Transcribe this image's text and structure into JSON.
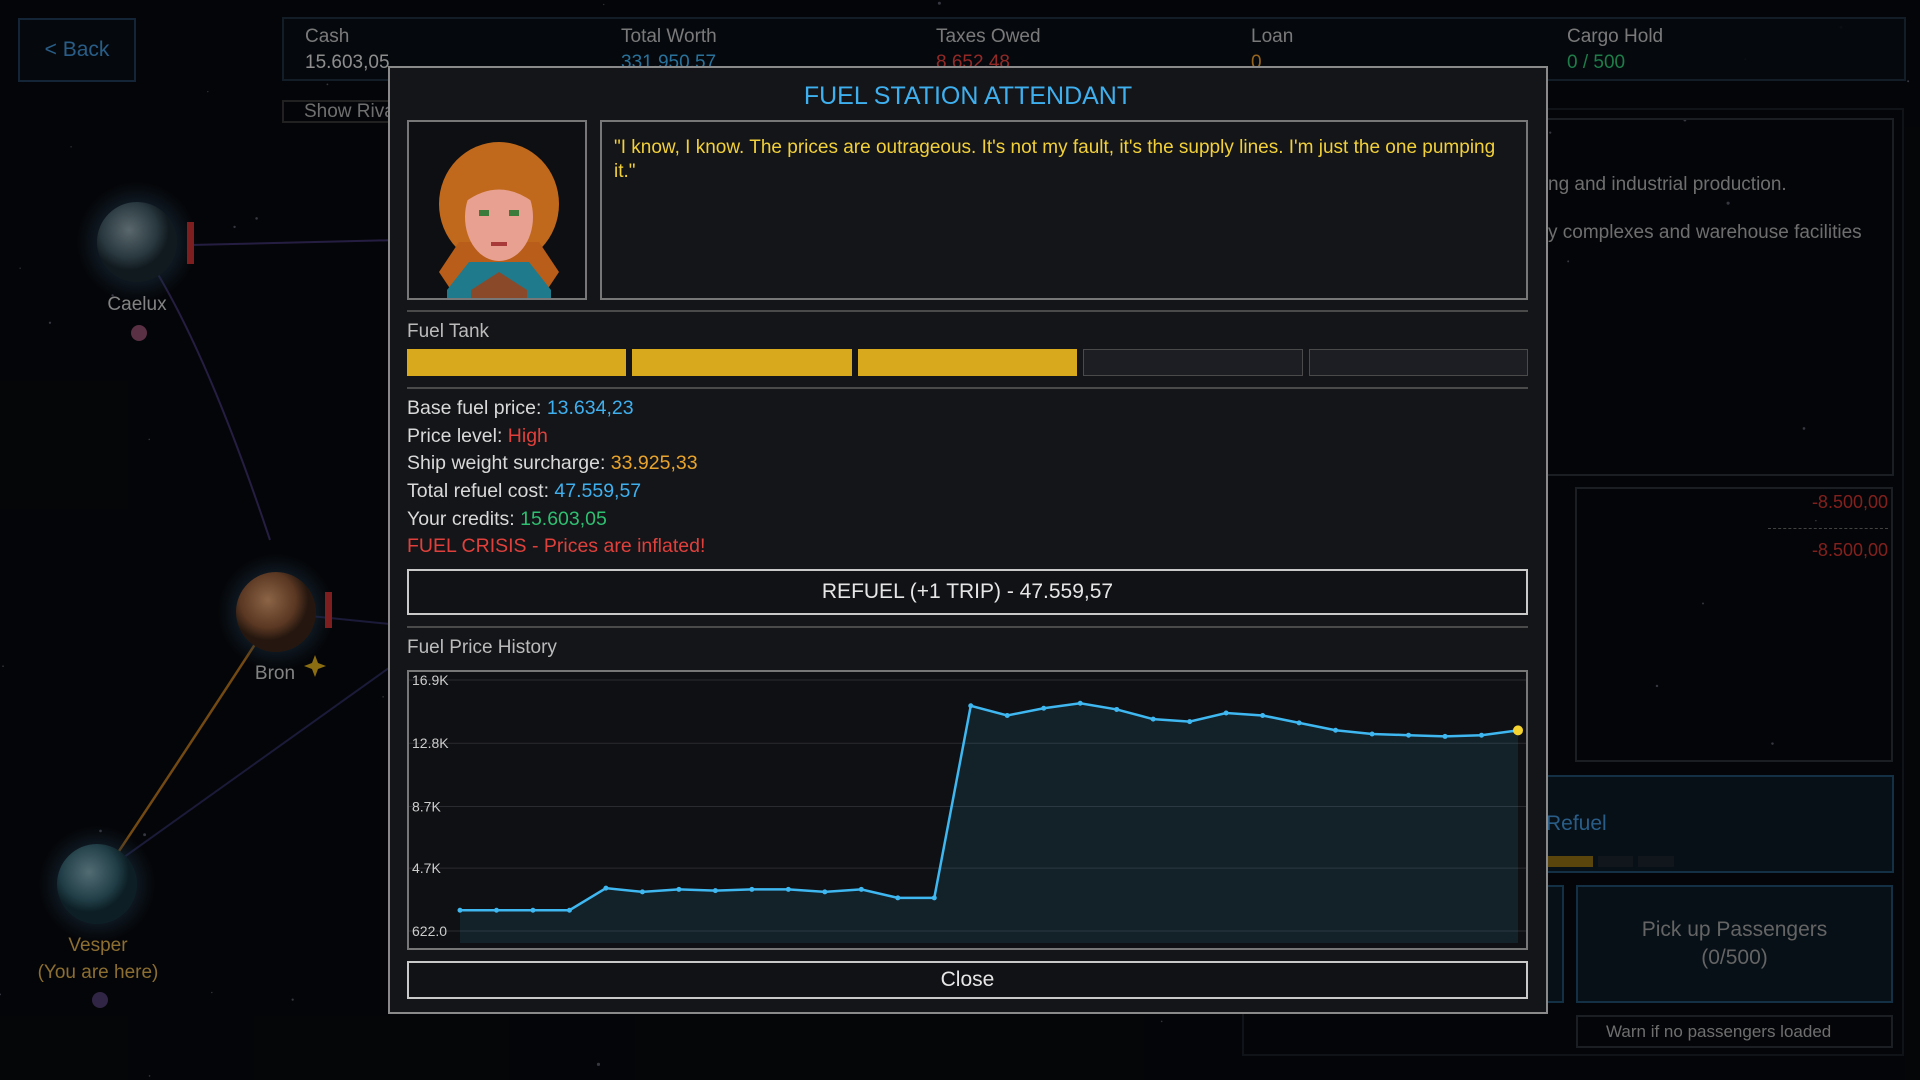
{
  "back_button": "< Back",
  "stats": [
    {
      "label": "Cash",
      "value": "15.603,05",
      "color": "#d9d9d9"
    },
    {
      "label": "Total Worth",
      "value": "331.950,57",
      "color": "#3fb0ef"
    },
    {
      "label": "Taxes Owed",
      "value": "8.652,48",
      "color": "#e0403c"
    },
    {
      "label": "Loan",
      "value": "0",
      "color": "#e89a2c"
    },
    {
      "label": "Cargo Hold",
      "value": "0 / 500",
      "color": "#2fbf71"
    }
  ],
  "show_rivals": "Show Riva",
  "planets": [
    {
      "name": "Caelux"
    },
    {
      "name": "Bron"
    },
    {
      "name": "Vesper",
      "note": "(You are here)"
    }
  ],
  "side_panel": {
    "description": [
      "ng and industrial production.",
      "y complexes and warehouse facilities"
    ],
    "amounts": [
      "-8.500,00",
      "-8.500,00"
    ],
    "refuel": "Refuel",
    "passengers": [
      "Pick up Passengers",
      "(0/500)"
    ],
    "warn": "Warn if no passengers loaded"
  },
  "dialog": {
    "title": "FUEL STATION ATTENDANT",
    "quote": "\"I know, I know. The prices are outrageous. It's not my fault, it's the supply lines. I'm just the one pumping it.\"",
    "fuel_tank": {
      "label": "Fuel Tank",
      "segments": 5,
      "filled": 3,
      "color": "#d8a91c"
    },
    "info": [
      {
        "label": "Base fuel price:",
        "value": "13.634,23",
        "color": "#3fb0ef"
      },
      {
        "label": "Price level:",
        "value": "High",
        "color": "#e0403c"
      },
      {
        "label": "Ship weight surcharge:",
        "value": "33.925,33",
        "color": "#e8a42c"
      },
      {
        "label": "Total refuel cost:",
        "value": "47.559,57",
        "color": "#3fb0ef"
      },
      {
        "label": "Your credits:",
        "value": "15.603,05",
        "color": "#2fbf71"
      }
    ],
    "warning": "FUEL CRISIS - Prices are inflated!",
    "refuel_button": "REFUEL (+1 TRIP) - 47.559,57",
    "close_button": "Close"
  },
  "chart_data": {
    "type": "line",
    "title": "Fuel Price History",
    "values": [
      1970,
      1970,
      1970,
      1970,
      3400,
      3160,
      3320,
      3240,
      3320,
      3320,
      3160,
      3320,
      2770,
      2770,
      15230,
      14600,
      15070,
      15390,
      14990,
      14360,
      14200,
      14760,
      14600,
      14120,
      13640,
      13400,
      13320,
      13240,
      13320,
      13634.23
    ],
    "color": "#3fb7f0",
    "highlight_color": "#f5d431",
    "ylim": [
      622,
      16900
    ],
    "yticks": [
      {
        "value": 622,
        "label": "622.0"
      },
      {
        "value": 4700,
        "label": "4.7K"
      },
      {
        "value": 8700,
        "label": "8.7K"
      },
      {
        "value": 12800,
        "label": "12.8K"
      },
      {
        "value": 16900,
        "label": "16.9K"
      }
    ],
    "grid": true
  }
}
